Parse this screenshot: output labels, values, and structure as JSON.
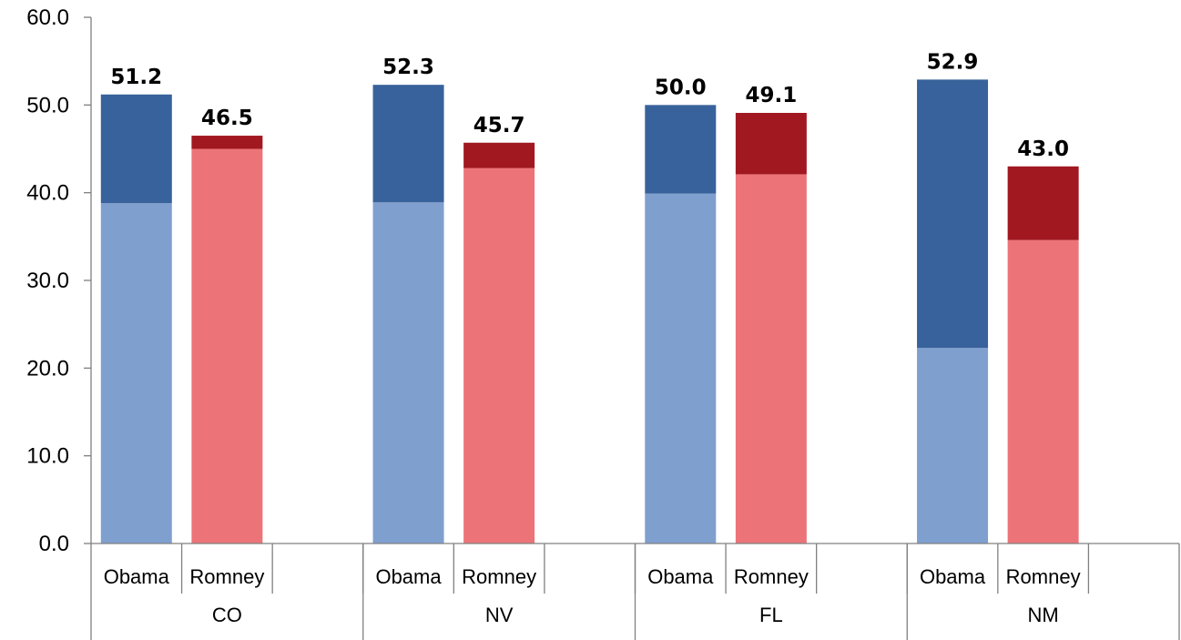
{
  "chart_data": {
    "type": "bar",
    "stacked": true,
    "ylim": [
      0,
      60
    ],
    "ytick_step": 10,
    "ytick_labels": [
      "0.0",
      "10.0",
      "20.0",
      "30.0",
      "40.0",
      "50.0",
      "60.0"
    ],
    "grid": false,
    "legend": "none",
    "groups": [
      {
        "label": "CO",
        "bars": [
          {
            "label": "Obama",
            "total": 51.2,
            "total_label": "51.2",
            "base": 38.8,
            "base_color": "#7f9fcf",
            "top_color": "#38629b"
          },
          {
            "label": "Romney",
            "total": 46.5,
            "total_label": "46.5",
            "base": 45.0,
            "base_color": "#ec7479",
            "top_color": "#a11820"
          }
        ]
      },
      {
        "label": "NV",
        "bars": [
          {
            "label": "Obama",
            "total": 52.3,
            "total_label": "52.3",
            "base": 38.9,
            "base_color": "#7f9fcf",
            "top_color": "#38629b"
          },
          {
            "label": "Romney",
            "total": 45.7,
            "total_label": "45.7",
            "base": 42.8,
            "base_color": "#ec7479",
            "top_color": "#a11820"
          }
        ]
      },
      {
        "label": "FL",
        "bars": [
          {
            "label": "Obama",
            "total": 50.0,
            "total_label": "50.0",
            "base": 39.9,
            "base_color": "#7f9fcf",
            "top_color": "#38629b"
          },
          {
            "label": "Romney",
            "total": 49.1,
            "total_label": "49.1",
            "base": 42.1,
            "base_color": "#ec7479",
            "top_color": "#a11820"
          }
        ]
      },
      {
        "label": "NM",
        "bars": [
          {
            "label": "Obama",
            "total": 52.9,
            "total_label": "52.9",
            "base": 22.3,
            "base_color": "#7f9fcf",
            "top_color": "#38629b"
          },
          {
            "label": "Romney",
            "total": 43.0,
            "total_label": "43.0",
            "base": 34.6,
            "base_color": "#ec7479",
            "top_color": "#a11820"
          }
        ]
      }
    ]
  }
}
